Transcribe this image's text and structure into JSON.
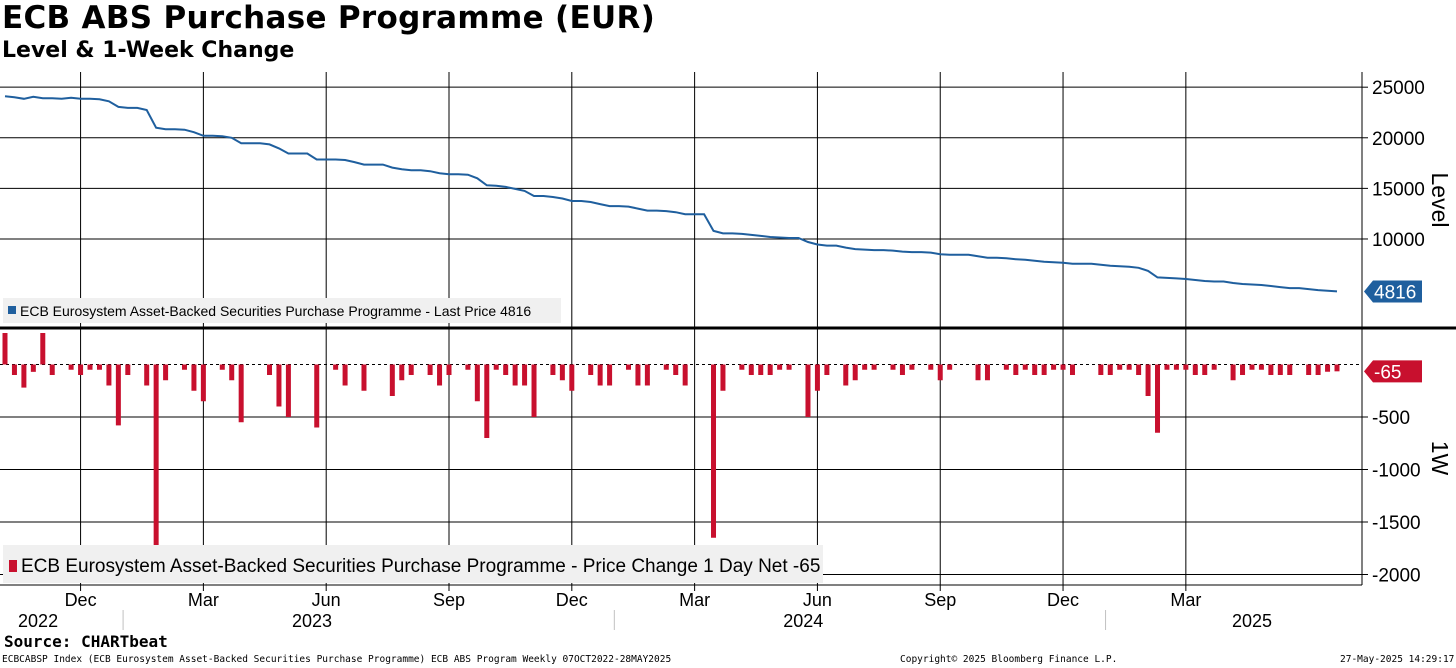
{
  "title": "ECB ABS Purchase Programme (EUR)",
  "subtitle": "Level & 1-Week Change",
  "source": "Source: CHARTbeat",
  "footer": {
    "left": "ECBCABSP Index (ECB Eurosystem Asset-Backed Securities Purchase Programme) ECB ABS Program  Weekly 07OCT2022-28MAY2025",
    "center": "Copyright© 2025 Bloomberg Finance L.P.",
    "right": "27-May-2025 14:29:17"
  },
  "colors": {
    "level_line": "#1f5f9e",
    "change_bar": "#c8102e",
    "grid": "#000000"
  },
  "chart_data": [
    {
      "type": "line",
      "panel": "top",
      "ylabel": "Level",
      "ylim": [
        1500,
        26500
      ],
      "yticks": [
        25000,
        20000,
        15000,
        10000
      ],
      "legend": "ECB Eurosystem Asset-Backed Securities Purchase Programme - Last Price 4816",
      "legend_position": "bottom-left",
      "last_value_label": "4816",
      "series": [
        {
          "values": [
            24100,
            24000,
            23850,
            24050,
            23900,
            23900,
            23850,
            23950,
            23850,
            23850,
            23800,
            23600,
            23050,
            22950,
            22950,
            22750,
            21000,
            20850,
            20850,
            20800,
            20550,
            20200,
            20200,
            20150,
            20000,
            19450,
            19450,
            19450,
            19350,
            18950,
            18450,
            18450,
            18450,
            17850,
            17850,
            17850,
            17800,
            17600,
            17350,
            17350,
            17350,
            17050,
            16900,
            16800,
            16800,
            16700,
            16500,
            16400,
            16400,
            16350,
            16000,
            15300,
            15250,
            15150,
            14950,
            14750,
            14250,
            14250,
            14150,
            14000,
            13750,
            13750,
            13650,
            13450,
            13250,
            13250,
            13200,
            13000,
            12800,
            12800,
            12750,
            12650,
            12450,
            12450,
            12450,
            10800,
            10550,
            10550,
            10500,
            10400,
            10300,
            10200,
            10150,
            10100,
            10100,
            9700,
            9450,
            9350,
            9350,
            9150,
            9000,
            8950,
            8900,
            8900,
            8850,
            8750,
            8700,
            8700,
            8650,
            8500,
            8450,
            8450,
            8450,
            8300,
            8150,
            8150,
            8100,
            8000,
            7950,
            7850,
            7750,
            7700,
            7650,
            7550,
            7550,
            7550,
            7450,
            7350,
            7300,
            7250,
            7150,
            6850,
            6200,
            6150,
            6100,
            6050,
            5950,
            5850,
            5800,
            5800,
            5650,
            5550,
            5500,
            5450,
            5350,
            5250,
            5150,
            5150,
            5050,
            4950,
            4881,
            4816
          ]
        }
      ]
    },
    {
      "type": "bar",
      "panel": "bottom",
      "ylabel": "1W",
      "ylim": [
        -2100,
        300
      ],
      "yticks": [
        -500,
        -1000,
        -1500,
        -2000
      ],
      "legend": "ECB Eurosystem Asset-Backed Securities Purchase Programme - Price Change 1 Day Net -65",
      "legend_position": "bottom-left",
      "last_value_label": "-65",
      "values": [
        300,
        -100,
        -220,
        -70,
        300,
        -100,
        0,
        -50,
        -100,
        -50,
        -50,
        -200,
        -580,
        -100,
        0,
        -200,
        -1750,
        -150,
        0,
        -50,
        -250,
        -350,
        0,
        -50,
        -150,
        -550,
        0,
        0,
        -100,
        -400,
        -500,
        0,
        0,
        -600,
        0,
        -50,
        -200,
        0,
        -250,
        0,
        0,
        -300,
        -150,
        -100,
        0,
        -100,
        -200,
        -100,
        0,
        -50,
        -350,
        -700,
        -50,
        -100,
        -200,
        -200,
        -500,
        0,
        -100,
        -150,
        -250,
        0,
        -100,
        -200,
        -200,
        0,
        -50,
        -200,
        -200,
        0,
        -50,
        -100,
        -200,
        0,
        0,
        -1650,
        -250,
        0,
        -50,
        -100,
        -100,
        -100,
        -50,
        -50,
        0,
        -500,
        -250,
        -100,
        0,
        -200,
        -150,
        -50,
        -50,
        0,
        -50,
        -100,
        -50,
        0,
        -50,
        -150,
        -50,
        0,
        0,
        -150,
        -150,
        0,
        -50,
        -100,
        -50,
        -100,
        -100,
        -50,
        -50,
        -100,
        0,
        0,
        -100,
        -100,
        -50,
        -50,
        -100,
        -300,
        -650,
        -50,
        -50,
        -50,
        -100,
        -100,
        -50,
        0,
        -150,
        -100,
        -50,
        -50,
        -100,
        -100,
        -100,
        0,
        -100,
        -100,
        -69,
        -65
      ]
    }
  ],
  "x_axis": {
    "months": [
      {
        "label": "Dec",
        "week": 8
      },
      {
        "label": "Mar",
        "week": 21
      },
      {
        "label": "Jun",
        "week": 34
      },
      {
        "label": "Sep",
        "week": 47
      },
      {
        "label": "Dec",
        "week": 60
      },
      {
        "label": "Mar",
        "week": 73
      },
      {
        "label": "Jun",
        "week": 86
      },
      {
        "label": "Sep",
        "week": 99
      },
      {
        "label": "Dec",
        "week": 112
      },
      {
        "label": "Mar",
        "week": 125
      }
    ],
    "years": [
      {
        "label": "2022",
        "week": 3.5
      },
      {
        "label": "2023",
        "week": 32.5
      },
      {
        "label": "2024",
        "week": 84.5
      },
      {
        "label": "2025",
        "week": 132
      }
    ],
    "year_separators": [
      12.5,
      64.5,
      116.5
    ]
  }
}
